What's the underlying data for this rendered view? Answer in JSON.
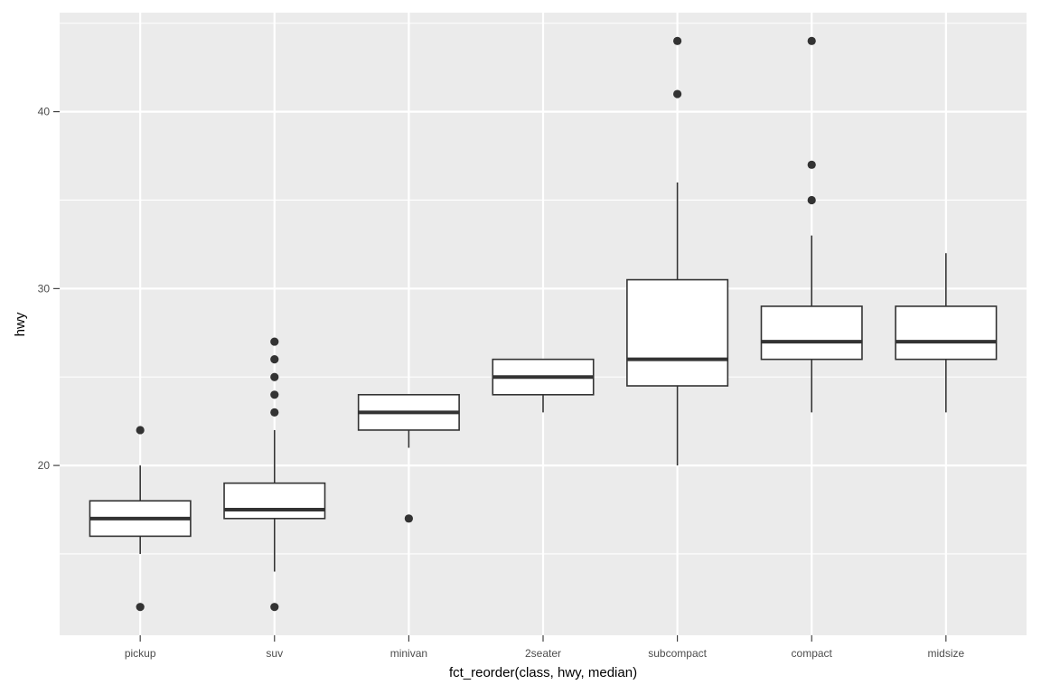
{
  "chart_data": {
    "type": "boxplot",
    "xlabel": "fct_reorder(class, hwy, median)",
    "ylabel": "hwy",
    "ylim": [
      10.4,
      45.6
    ],
    "y_ticks": [
      20,
      30,
      40
    ],
    "grid": true,
    "colors": {
      "panel": "#ebebeb",
      "grid": "#ffffff",
      "box_fill": "#ffffff",
      "box_stroke": "#333333",
      "outlier": "#333333"
    },
    "categories": [
      "pickup",
      "suv",
      "minivan",
      "2seater",
      "subcompact",
      "compact",
      "midsize"
    ],
    "boxes": [
      {
        "category": "pickup",
        "whisker_low": 15,
        "q1": 16,
        "median": 17,
        "q3": 18,
        "whisker_high": 20,
        "outliers": [
          12,
          22
        ]
      },
      {
        "category": "suv",
        "whisker_low": 14,
        "q1": 17,
        "median": 17.5,
        "q3": 19,
        "whisker_high": 22,
        "outliers": [
          12,
          23,
          24,
          25,
          26,
          27
        ]
      },
      {
        "category": "minivan",
        "whisker_low": 21,
        "q1": 22,
        "median": 23,
        "q3": 24,
        "whisker_high": 24,
        "outliers": [
          17
        ]
      },
      {
        "category": "2seater",
        "whisker_low": 23,
        "q1": 24,
        "median": 25,
        "q3": 26,
        "whisker_high": 26,
        "outliers": []
      },
      {
        "category": "subcompact",
        "whisker_low": 20,
        "q1": 24.5,
        "median": 26,
        "q3": 30.5,
        "whisker_high": 36,
        "outliers": [
          41,
          44
        ]
      },
      {
        "category": "compact",
        "whisker_low": 23,
        "q1": 26,
        "median": 27,
        "q3": 29,
        "whisker_high": 33,
        "outliers": [
          35,
          37,
          44
        ]
      },
      {
        "category": "midsize",
        "whisker_low": 23,
        "q1": 26,
        "median": 27,
        "q3": 29,
        "whisker_high": 32,
        "outliers": []
      }
    ]
  }
}
